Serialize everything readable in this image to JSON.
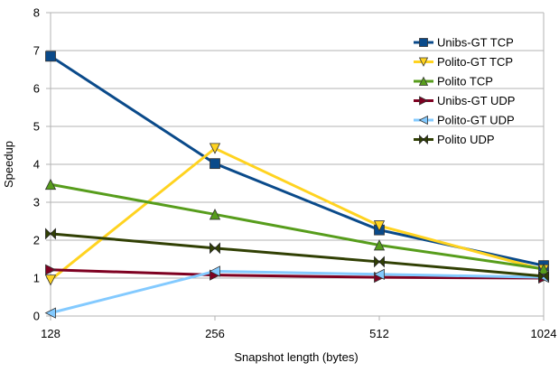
{
  "chart_data": {
    "type": "line",
    "title": "",
    "xlabel": "Snapshot length (bytes)",
    "ylabel": "Speedup",
    "categories": [
      "128",
      "256",
      "512",
      "1024"
    ],
    "ylim": [
      0,
      8
    ],
    "yticks": [
      "0",
      "1",
      "2",
      "3",
      "4",
      "5",
      "6",
      "7",
      "8"
    ],
    "grid": "horizontal",
    "legend_position": "top-right",
    "series": [
      {
        "name": "Unibs-GT TCP",
        "values": [
          6.85,
          4.02,
          2.27,
          1.33
        ],
        "color": "#0a4a8a",
        "marker": "square"
      },
      {
        "name": "Polito-GT TCP",
        "values": [
          0.95,
          4.42,
          2.38,
          1.22
        ],
        "color": "#ffd320",
        "marker": "triangle-down"
      },
      {
        "name": "Polito TCP",
        "values": [
          3.47,
          2.68,
          1.87,
          1.24
        ],
        "color": "#579d1c",
        "marker": "triangle-up"
      },
      {
        "name": "Unibs-GT UDP",
        "values": [
          1.22,
          1.08,
          1.02,
          1.0
        ],
        "color": "#7e0021",
        "marker": "triangle-right"
      },
      {
        "name": "Polito-GT UDP",
        "values": [
          0.08,
          1.18,
          1.1,
          1.02
        ],
        "color": "#83caff",
        "marker": "triangle-left"
      },
      {
        "name": "Polito UDP",
        "values": [
          2.17,
          1.79,
          1.43,
          1.05
        ],
        "color": "#314004",
        "marker": "bowtie"
      }
    ]
  }
}
